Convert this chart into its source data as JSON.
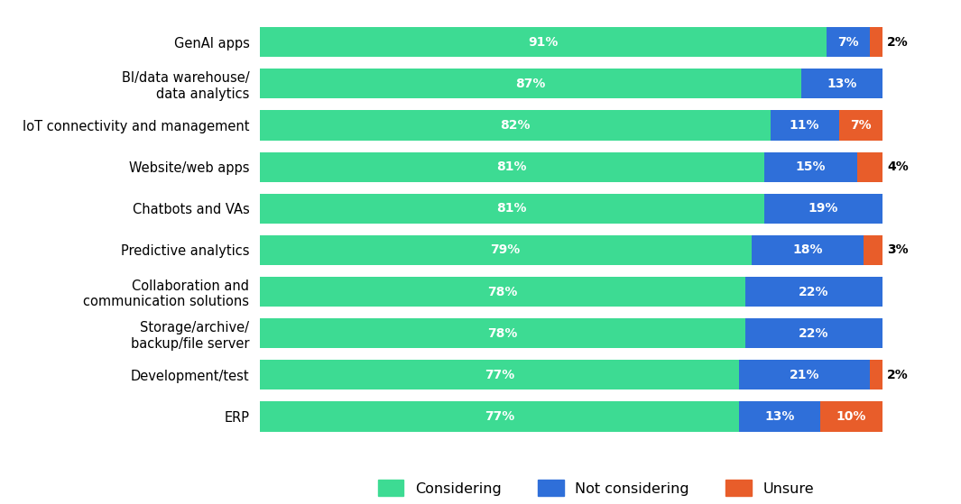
{
  "categories": [
    "ERP",
    "Development/test",
    "Storage/archive/\nbackup/file server",
    "Collaboration and\ncommunication solutions",
    "Predictive analytics",
    "Chatbots and VAs",
    "Website/web apps",
    "IoT connectivity and management",
    "BI/data warehouse/\ndata analytics",
    "GenAI apps"
  ],
  "considering": [
    77,
    77,
    78,
    78,
    79,
    81,
    81,
    82,
    87,
    91
  ],
  "not_considering": [
    13,
    21,
    22,
    22,
    18,
    19,
    15,
    11,
    13,
    7
  ],
  "unsure": [
    10,
    2,
    0,
    0,
    3,
    0,
    4,
    7,
    0,
    2
  ],
  "color_considering": "#3DDB93",
  "color_not_considering": "#2F6FD9",
  "color_unsure": "#E85D2A",
  "background_color": "#FFFFFF",
  "bar_height": 0.72,
  "label_fontsize": 10,
  "tick_fontsize": 10.5,
  "legend_fontsize": 11.5
}
